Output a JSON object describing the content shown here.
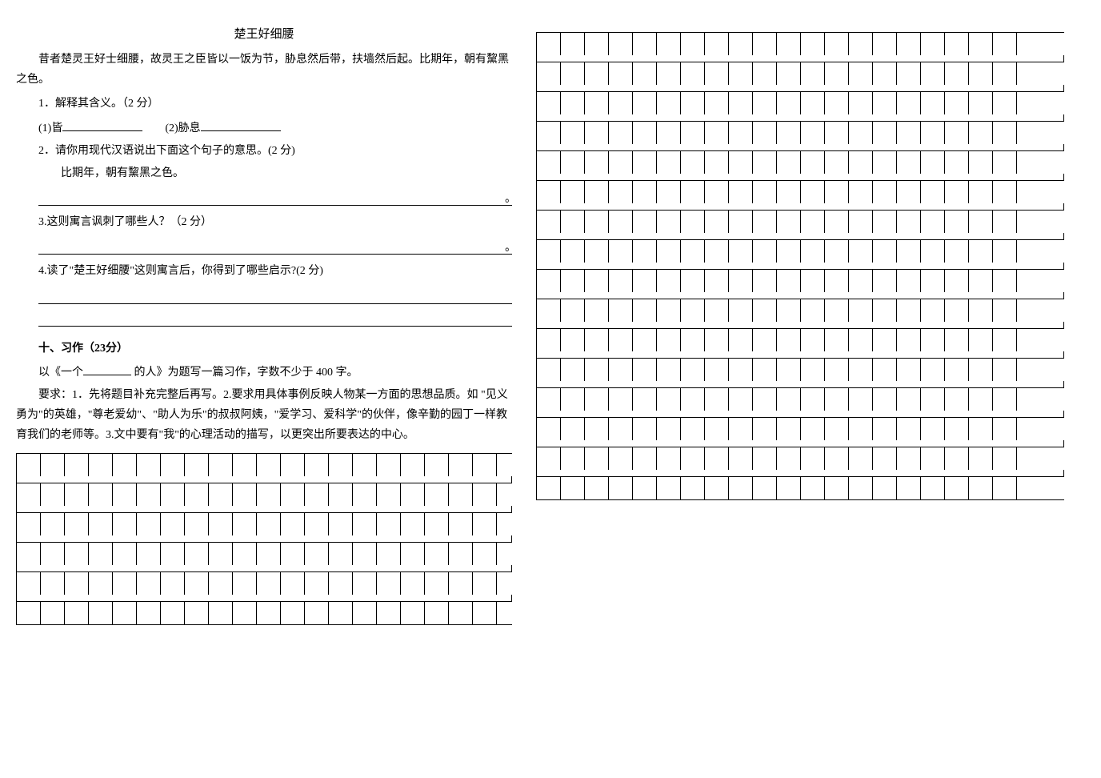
{
  "reading": {
    "title": "楚王好细腰",
    "passage": "昔者楚灵王好士细腰，故灵王之臣皆以一饭为节，胁息然后带，扶墙然后起。比期年，朝有黧黑之色。",
    "q1": {
      "text": "1．解释其含义。（2 分）",
      "sub1_label": "(1)皆",
      "sub2_label": "(2)胁息"
    },
    "q2": {
      "text": "2．请你用现代汉语说出下面这个句子的意思。(2 分)",
      "sentence": "比期年，朝有黧黑之色。"
    },
    "q3": {
      "text": "3.这则寓言讽刺了哪些人？（2 分）"
    },
    "q4": {
      "text": "4.读了\"楚王好细腰\"这则寓言后，你得到了哪些启示?(2 分)"
    }
  },
  "writing": {
    "section_title": "十、习作（23分）",
    "prompt_before": "以《一个",
    "prompt_after": " 的人》为题写一篇习作，字数不少于 400 字。",
    "requirements": "要求：1．先将题目补充完整后再写。2.要求用具体事例反映人物某一方面的思想品质。如 \"见义勇为\"的英雄，\"尊老爱幼\"、\"助人为乐\"的叔叔阿姨，\"爱学习、爱科学\"的伙伴，像辛勤的园丁一样教育我们的老师等。3.文中要有\"我\"的心理活动的描写，以更突出所要表达的中心。"
  },
  "grid": {
    "cols": 20,
    "left_rows": 6,
    "right_rows": 16
  }
}
